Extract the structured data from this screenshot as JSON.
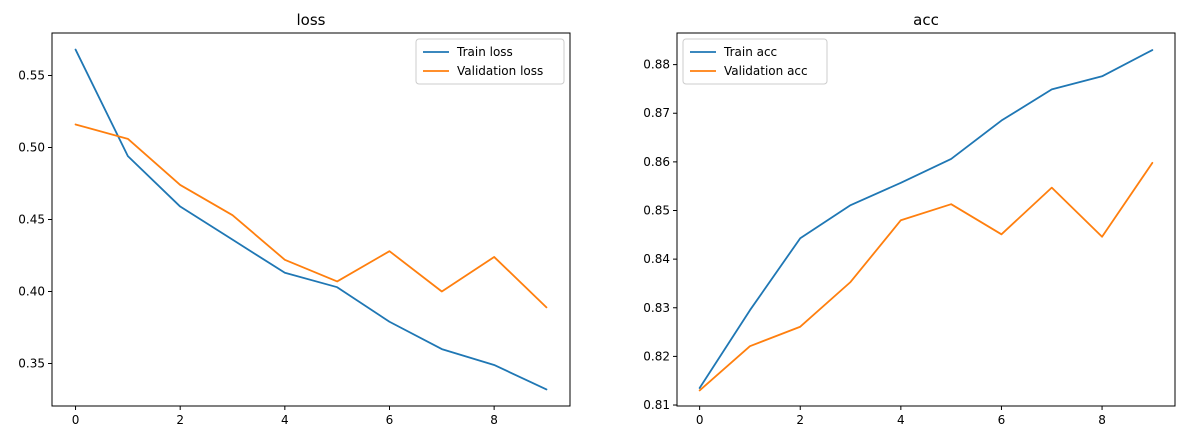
{
  "chart_data": [
    {
      "type": "line",
      "title": "loss",
      "xlabel": "",
      "ylabel": "",
      "x": [
        0,
        1,
        2,
        3,
        4,
        5,
        6,
        7,
        8,
        9
      ],
      "series": [
        {
          "name": "Train loss",
          "color": "#1f77b4",
          "values": [
            0.568,
            0.494,
            0.459,
            0.436,
            0.413,
            0.403,
            0.379,
            0.36,
            0.349,
            0.332
          ]
        },
        {
          "name": "Validation loss",
          "color": "#ff7f0e",
          "values": [
            0.516,
            0.506,
            0.474,
            0.453,
            0.422,
            0.407,
            0.428,
            0.4,
            0.424,
            0.389
          ]
        }
      ],
      "xlim": [
        -0.45,
        9.45
      ],
      "ylim": [
        0.3205,
        0.5795
      ],
      "xticks": [
        0,
        2,
        4,
        6,
        8
      ],
      "yticks": [
        0.35,
        0.4,
        0.45,
        0.5,
        0.55
      ],
      "ytick_labels": [
        "0.35",
        "0.40",
        "0.45",
        "0.50",
        "0.55"
      ],
      "legend_position": "top-right",
      "grid": false
    },
    {
      "type": "line",
      "title": "acc",
      "xlabel": "",
      "ylabel": "",
      "x": [
        0,
        1,
        2,
        3,
        4,
        5,
        6,
        7,
        8,
        9
      ],
      "series": [
        {
          "name": "Train acc",
          "color": "#1f77b4",
          "values": [
            0.8135,
            0.8295,
            0.8443,
            0.8511,
            0.8557,
            0.8606,
            0.8685,
            0.8749,
            0.8776,
            0.883
          ]
        },
        {
          "name": "Validation acc",
          "color": "#ff7f0e",
          "values": [
            0.813,
            0.8221,
            0.8261,
            0.8353,
            0.848,
            0.8513,
            0.8451,
            0.8547,
            0.8446,
            0.8598
          ]
        }
      ],
      "xlim": [
        -0.45,
        9.45
      ],
      "ylim": [
        0.8098,
        0.8865
      ],
      "xticks": [
        0,
        2,
        4,
        6,
        8
      ],
      "yticks": [
        0.81,
        0.82,
        0.83,
        0.84,
        0.85,
        0.86,
        0.87,
        0.88
      ],
      "ytick_labels": [
        "0.81",
        "0.82",
        "0.83",
        "0.84",
        "0.85",
        "0.86",
        "0.87",
        "0.88"
      ],
      "legend_position": "top-left",
      "grid": false
    }
  ]
}
